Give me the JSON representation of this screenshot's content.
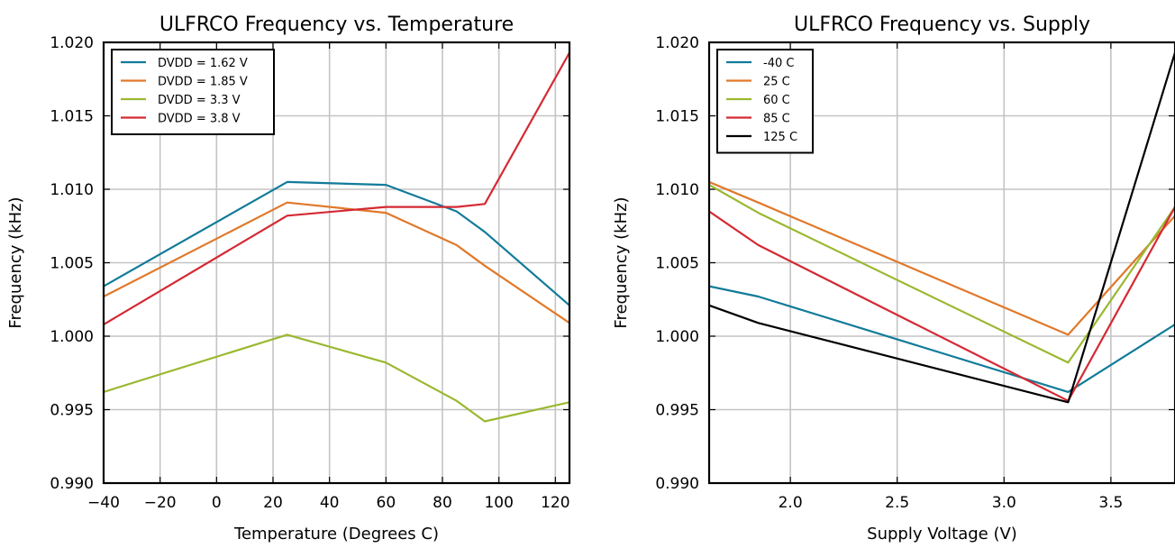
{
  "chart_data": [
    {
      "type": "line",
      "title": "ULFRCO Frequency vs. Temperature",
      "xlabel": "Temperature (Degrees C)",
      "ylabel": "Frequency (kHz)",
      "xlim": [
        -40,
        125
      ],
      "ylim": [
        0.99,
        1.02
      ],
      "xticks": [
        "−40",
        "−20",
        "0",
        "20",
        "40",
        "60",
        "80",
        "100",
        "120"
      ],
      "yticks": [
        "0.990",
        "0.995",
        "1.000",
        "1.005",
        "1.010",
        "1.015",
        "1.020"
      ],
      "grid": true,
      "legend_loc": "top-left",
      "series": [
        {
          "name": "DVDD = 1.62 V",
          "color": "#117b99",
          "x": [
            -40,
            25,
            60,
            85,
            95,
            125
          ],
          "y": [
            1.0034,
            1.0105,
            1.0103,
            1.0085,
            1.0071,
            1.0021
          ]
        },
        {
          "name": "DVDD = 1.85 V",
          "color": "#e0792b",
          "x": [
            -40,
            25,
            60,
            85,
            95,
            125
          ],
          "y": [
            1.0027,
            1.0091,
            1.0084,
            1.0062,
            1.0048,
            1.0009
          ]
        },
        {
          "name": "DVDD = 3.3 V",
          "color": "#9ab830",
          "x": [
            -40,
            25,
            60,
            85,
            95,
            125
          ],
          "y": [
            0.9962,
            1.0001,
            0.9982,
            0.9956,
            0.9942,
            0.9955
          ]
        },
        {
          "name": "DVDD = 3.8 V",
          "color": "#d42a34",
          "x": [
            -40,
            25,
            60,
            85,
            95,
            125
          ],
          "y": [
            1.0008,
            1.0082,
            1.0088,
            1.0088,
            1.009,
            1.0193
          ]
        }
      ]
    },
    {
      "type": "line",
      "title": "ULFRCO Frequency vs. Supply",
      "xlabel": "Supply Voltage (V)",
      "ylabel": "Frequency (kHz)",
      "xlim": [
        1.62,
        3.8
      ],
      "ylim": [
        0.99,
        1.02
      ],
      "xticks": [
        "2.0",
        "2.5",
        "3.0",
        "3.5"
      ],
      "xtick_values": [
        2.0,
        2.5,
        3.0,
        3.5
      ],
      "yticks": [
        "0.990",
        "0.995",
        "1.000",
        "1.005",
        "1.010",
        "1.015",
        "1.020"
      ],
      "grid": true,
      "legend_loc": "top-left",
      "series": [
        {
          "name": "-40 C",
          "color": "#117b99",
          "x": [
            1.62,
            1.85,
            3.3,
            3.8
          ],
          "y": [
            1.0034,
            1.0027,
            0.9962,
            1.0008
          ]
        },
        {
          "name": "25 C",
          "color": "#e0792b",
          "x": [
            1.62,
            1.85,
            3.3,
            3.8
          ],
          "y": [
            1.0105,
            1.0091,
            1.0001,
            1.0082
          ]
        },
        {
          "name": "60 C",
          "color": "#9ab830",
          "x": [
            1.62,
            1.85,
            3.3,
            3.8
          ],
          "y": [
            1.0103,
            1.0084,
            0.9982,
            1.0088
          ]
        },
        {
          "name": "85 C",
          "color": "#d42a34",
          "x": [
            1.62,
            1.85,
            3.3,
            3.8
          ],
          "y": [
            1.0085,
            1.0062,
            0.9956,
            1.0088
          ]
        },
        {
          "name": "125 C",
          "color": "#000000",
          "x": [
            1.62,
            1.85,
            3.3,
            3.8
          ],
          "y": [
            1.0021,
            1.0009,
            0.9955,
            1.0193
          ]
        }
      ]
    }
  ]
}
